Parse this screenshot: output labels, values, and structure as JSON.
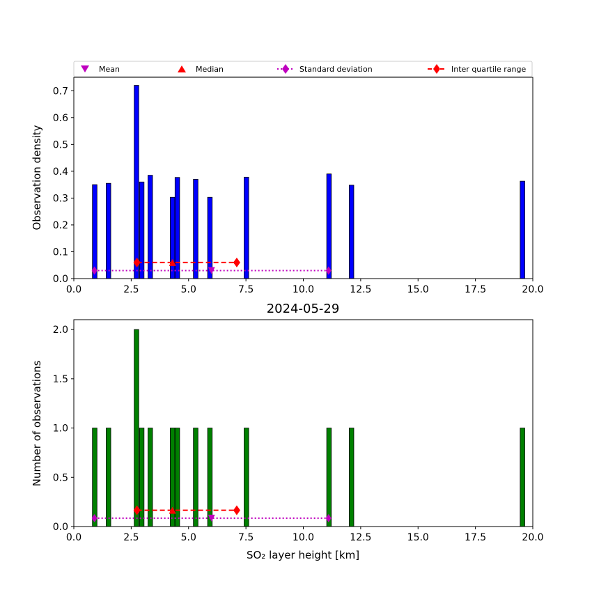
{
  "chart_data": [
    {
      "type": "bar",
      "bar_color": "#0000ff",
      "ylabel": "Observation density",
      "xlim": [
        0,
        20
      ],
      "ylim": [
        0,
        0.75
      ],
      "xticks": [
        "0.0",
        "2.5",
        "5.0",
        "7.5",
        "10.0",
        "12.5",
        "15.0",
        "17.5",
        "20.0"
      ],
      "yticks": [
        "0.0",
        "0.1",
        "0.2",
        "0.3",
        "0.4",
        "0.5",
        "0.6",
        "0.7"
      ],
      "ytick_values": [
        0,
        0.1,
        0.2,
        0.3,
        0.4,
        0.5,
        0.6,
        0.7
      ],
      "bars": [
        {
          "x": 0.91,
          "value": 0.35
        },
        {
          "x": 1.51,
          "value": 0.355
        },
        {
          "x": 2.73,
          "value": 0.72
        },
        {
          "x": 2.96,
          "value": 0.36
        },
        {
          "x": 3.33,
          "value": 0.385
        },
        {
          "x": 4.3,
          "value": 0.303
        },
        {
          "x": 4.51,
          "value": 0.377
        },
        {
          "x": 5.31,
          "value": 0.37
        },
        {
          "x": 5.93,
          "value": 0.303
        },
        {
          "x": 7.52,
          "value": 0.378
        },
        {
          "x": 11.12,
          "value": 0.39
        },
        {
          "x": 12.1,
          "value": 0.348
        },
        {
          "x": 19.55,
          "value": 0.363
        }
      ],
      "mean": {
        "x": 6.0,
        "y": 0.03
      },
      "median": {
        "x": 4.3,
        "y": 0.06
      },
      "std_range": {
        "x": [
          0.9,
          11.1
        ],
        "y": 0.03
      },
      "iqr": {
        "x": [
          2.75,
          7.1
        ],
        "y": 0.06
      }
    },
    {
      "type": "bar",
      "bar_color": "#008000",
      "title": "2024-05-29",
      "xlabel": "SO₂ layer height [km]",
      "ylabel": "Number of observations",
      "xlim": [
        0,
        20
      ],
      "ylim": [
        0,
        2.1
      ],
      "xticks": [
        "0.0",
        "2.5",
        "5.0",
        "7.5",
        "10.0",
        "12.5",
        "15.0",
        "17.5",
        "20.0"
      ],
      "yticks": [
        "0.0",
        "0.5",
        "1.0",
        "1.5",
        "2.0"
      ],
      "ytick_values": [
        0,
        0.5,
        1.0,
        1.5,
        2.0
      ],
      "bars": [
        {
          "x": 0.91,
          "value": 1
        },
        {
          "x": 1.51,
          "value": 1
        },
        {
          "x": 2.73,
          "value": 2
        },
        {
          "x": 2.96,
          "value": 1
        },
        {
          "x": 3.33,
          "value": 1
        },
        {
          "x": 4.3,
          "value": 1
        },
        {
          "x": 4.51,
          "value": 1
        },
        {
          "x": 5.31,
          "value": 1
        },
        {
          "x": 5.93,
          "value": 1
        },
        {
          "x": 7.52,
          "value": 1
        },
        {
          "x": 11.12,
          "value": 1
        },
        {
          "x": 12.1,
          "value": 1
        },
        {
          "x": 19.55,
          "value": 1
        }
      ],
      "mean": {
        "x": 6.0,
        "y": 0.085
      },
      "median": {
        "x": 4.3,
        "y": 0.165
      },
      "std_range": {
        "x": [
          0.9,
          11.1
        ],
        "y": 0.085
      },
      "iqr": {
        "x": [
          2.75,
          7.1
        ],
        "y": 0.165
      }
    }
  ],
  "legend": {
    "placement": "above top plot",
    "entries": [
      {
        "label": "Mean",
        "marker": "triangle-down",
        "color": "#bf00bf"
      },
      {
        "label": "Median",
        "marker": "triangle-up",
        "color": "#ff0000"
      },
      {
        "label": "Standard deviation",
        "marker": "diamond",
        "line": "dotted",
        "color": "#bf00bf"
      },
      {
        "label": "Inter quartile range",
        "marker": "diamond",
        "line": "dashed",
        "color": "#ff0000"
      }
    ]
  }
}
